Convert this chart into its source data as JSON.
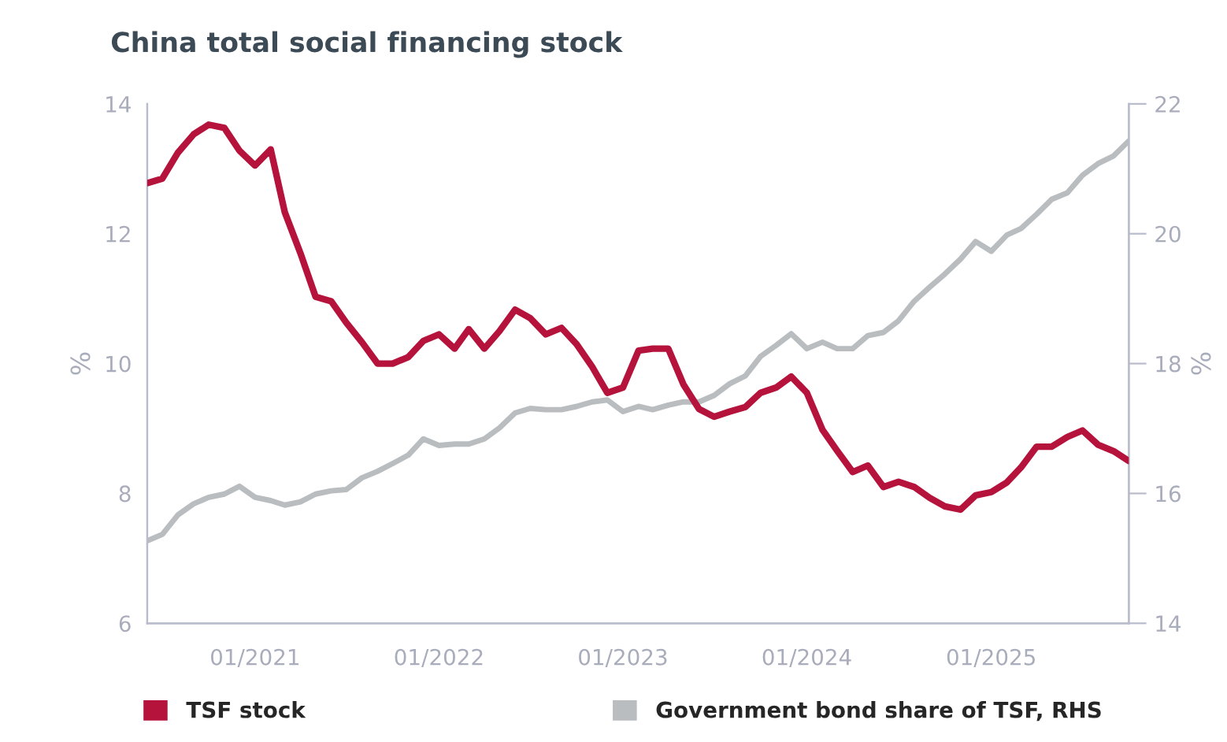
{
  "chart_data": {
    "type": "line",
    "title": "China total social financing stock",
    "ylabel": "%",
    "y2label": "%",
    "x": [
      "2020-06",
      "2020-07",
      "2020-08",
      "2020-09",
      "2020-10",
      "2020-11",
      "2020-12",
      "2021-01",
      "2021-02",
      "2021-03",
      "2021-04",
      "2021-05",
      "2021-06",
      "2021-07",
      "2021-08",
      "2021-09",
      "2021-10",
      "2021-11",
      "2021-12",
      "2022-01",
      "2022-02",
      "2022-03",
      "2022-04",
      "2022-05",
      "2022-06",
      "2022-07",
      "2022-08",
      "2022-09",
      "2022-10",
      "2022-11",
      "2022-12",
      "2023-01",
      "2023-02",
      "2023-03",
      "2023-04",
      "2023-05",
      "2023-06",
      "2023-07",
      "2023-08",
      "2023-09",
      "2023-10",
      "2023-11",
      "2023-12",
      "2024-01",
      "2024-02",
      "2024-03",
      "2024-04",
      "2024-05",
      "2024-06",
      "2024-07",
      "2024-08",
      "2024-09",
      "2024-10",
      "2024-11",
      "2024-12",
      "2025-01",
      "2025-02",
      "2025-03",
      "2025-04",
      "2025-05",
      "2025-06",
      "2025-07",
      "2025-08",
      "2025-09",
      "2025-10"
    ],
    "series": [
      {
        "name": "TSF stock",
        "color": "#b5123c",
        "values": [
          12.78,
          12.85,
          13.25,
          13.53,
          13.68,
          13.63,
          13.28,
          13.05,
          13.3,
          12.33,
          11.7,
          11.03,
          10.96,
          10.63,
          10.33,
          10.0,
          10.0,
          10.1,
          10.35,
          10.45,
          10.23,
          10.53,
          10.23,
          10.5,
          10.83,
          10.7,
          10.45,
          10.55,
          10.3,
          9.95,
          9.55,
          9.63,
          10.2,
          10.23,
          10.23,
          9.68,
          9.3,
          9.18,
          9.26,
          9.33,
          9.55,
          9.63,
          9.8,
          9.55,
          8.98,
          8.66,
          8.33,
          8.43,
          8.1,
          8.18,
          8.1,
          7.93,
          7.8,
          7.75,
          7.97,
          8.02,
          8.17,
          8.4,
          8.72,
          8.72,
          8.87,
          8.97,
          8.75,
          8.65,
          8.5
        ]
      },
      {
        "name": "Government bond share of TSF, RHS",
        "color": "#b9bdc0",
        "axis": "y2",
        "values": [
          15.27,
          15.37,
          15.67,
          15.84,
          15.94,
          15.99,
          16.11,
          15.94,
          15.89,
          15.82,
          15.87,
          15.99,
          16.04,
          16.06,
          16.24,
          16.34,
          16.46,
          16.59,
          16.84,
          16.74,
          16.76,
          16.76,
          16.84,
          17.01,
          17.24,
          17.31,
          17.29,
          17.29,
          17.34,
          17.41,
          17.44,
          17.26,
          17.34,
          17.29,
          17.36,
          17.41,
          17.41,
          17.51,
          17.69,
          17.81,
          18.11,
          18.28,
          18.46,
          18.23,
          18.33,
          18.23,
          18.23,
          18.43,
          18.48,
          18.66,
          18.96,
          19.18,
          19.38,
          19.61,
          19.88,
          19.73,
          19.98,
          20.08,
          20.3,
          20.53,
          20.63,
          20.9,
          21.08,
          21.2,
          21.43
        ]
      }
    ],
    "xlim": [
      "2020-06",
      "2025-10"
    ],
    "xticks": [
      {
        "value": "2021-01",
        "label": "01/2021"
      },
      {
        "value": "2022-01",
        "label": "01/2022"
      },
      {
        "value": "2023-01",
        "label": "01/2023"
      },
      {
        "value": "2024-01",
        "label": "01/2024"
      },
      {
        "value": "2025-01",
        "label": "01/2025"
      }
    ],
    "ylim": [
      6,
      14
    ],
    "yticks": [
      6,
      8,
      10,
      12,
      14
    ],
    "y2lim": [
      14,
      22
    ],
    "y2ticks": [
      14,
      16,
      18,
      20,
      22
    ],
    "grid": false,
    "legend": "bottom",
    "line_style": "solid",
    "marker": "none"
  }
}
